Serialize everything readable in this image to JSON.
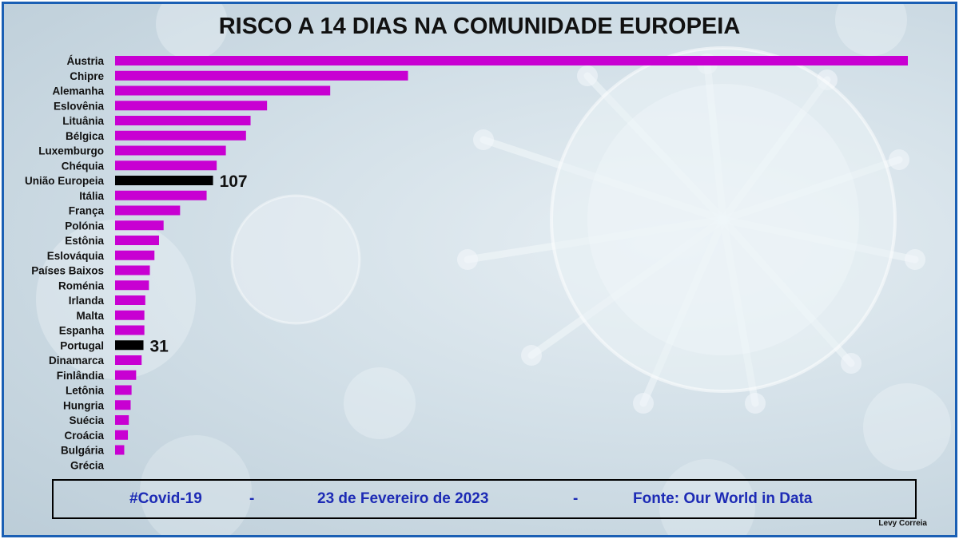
{
  "title": "RISCO A 14 DIAS NA COMUNIDADE EUROPEIA",
  "footer": {
    "hashtag": "#Covid-19",
    "sep1": "-",
    "date": "23 de Fevereiro de 2023",
    "sep2": "-",
    "source": "Fonte: Our World in Data"
  },
  "credit": "Levy Correia",
  "colors": {
    "bar": "#c800d2",
    "highlight": "#000000",
    "footer_text": "#1d2bb5",
    "frame": "#1a5fb4"
  },
  "chart_data": {
    "type": "bar",
    "orientation": "horizontal",
    "title": "RISCO A 14 DIAS NA COMUNIDADE EUROPEIA",
    "categories": [
      "Áustria",
      "Chipre",
      "Alemanha",
      "Eslovênia",
      "Lituânia",
      "Bélgica",
      "Luxemburgo",
      "Chéquia",
      "União Europeia",
      "Itália",
      "França",
      "Polónia",
      "Estônia",
      "Eslováquia",
      "Países Baixos",
      "Roménia",
      "Irlanda",
      "Malta",
      "Espanha",
      "Portugal",
      "Dinamarca",
      "Finlândia",
      "Letônia",
      "Hungria",
      "Suécia",
      "Croácia",
      "Bulgária",
      "Grécia"
    ],
    "values": [
      866,
      320,
      235,
      166,
      148,
      143,
      121,
      111,
      107,
      100,
      71,
      53,
      48,
      43,
      38,
      37,
      33,
      32,
      32,
      31,
      29,
      23,
      18,
      17,
      15,
      14,
      10,
      0
    ],
    "highlighted": [
      "União Europeia",
      "Portugal"
    ],
    "data_labels": {
      "União Europeia": "107",
      "Portugal": "31"
    },
    "xlim": [
      0,
      866
    ],
    "grid": false,
    "legend": "none"
  }
}
